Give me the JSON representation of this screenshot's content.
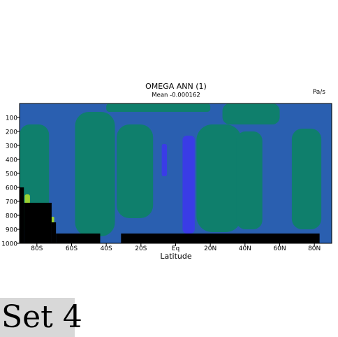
{
  "chart_data": {
    "type": "heatmap",
    "title": "OMEGA ANN (1)",
    "subtitle": "Mean -0.000162",
    "units": "Pa/s",
    "xlabel": "Latitude",
    "ylabel": "",
    "x_ticks": [
      "80S",
      "60S",
      "40S",
      "20S",
      "Eq",
      "20N",
      "40N",
      "60N",
      "80N"
    ],
    "x_tick_values": [
      -80,
      -60,
      -40,
      -20,
      0,
      20,
      40,
      60,
      80
    ],
    "y_ticks": [
      "100",
      "200",
      "300",
      "400",
      "500",
      "600",
      "700",
      "800",
      "900",
      "1000"
    ],
    "y_tick_values": [
      100,
      200,
      300,
      400,
      500,
      600,
      700,
      800,
      900,
      1000
    ],
    "xlim": [
      -90,
      90
    ],
    "ylim": [
      1000,
      0
    ],
    "colors": {
      "background_field": "#2a5fb0",
      "positive_region": "#0f7f6c",
      "negative_region": "#3a3ce6",
      "strong_positive": "#9ad234",
      "missing": "#000000"
    },
    "regions": [
      {
        "kind": "positive",
        "lat": [
          -90,
          -73
        ],
        "p": [
          150,
          920
        ]
      },
      {
        "kind": "positive",
        "lat": [
          -58,
          -35
        ],
        "p": [
          60,
          950
        ]
      },
      {
        "kind": "positive",
        "lat": [
          -40,
          20
        ],
        "p": [
          0,
          60
        ]
      },
      {
        "kind": "positive",
        "lat": [
          -34,
          -13
        ],
        "p": [
          150,
          820
        ]
      },
      {
        "kind": "positive",
        "lat": [
          12,
          38
        ],
        "p": [
          150,
          920
        ]
      },
      {
        "kind": "positive",
        "lat": [
          27,
          60
        ],
        "p": [
          0,
          150
        ]
      },
      {
        "kind": "positive",
        "lat": [
          35,
          50
        ],
        "p": [
          200,
          900
        ]
      },
      {
        "kind": "positive",
        "lat": [
          67,
          84
        ],
        "p": [
          180,
          900
        ]
      },
      {
        "kind": "negative",
        "lat": [
          4,
          11
        ],
        "p": [
          230,
          930
        ]
      },
      {
        "kind": "negative",
        "lat": [
          -8,
          -5
        ],
        "p": [
          290,
          520
        ]
      },
      {
        "kind": "strong_positive",
        "lat": [
          -87,
          -84
        ],
        "p": [
          650,
          720
        ]
      },
      {
        "kind": "strong_positive",
        "lat": [
          -72,
          -70
        ],
        "p": [
          810,
          860
        ]
      }
    ],
    "missing_regions": [
      {
        "lat": [
          -90,
          -87.5
        ],
        "p": [
          600,
          1000
        ]
      },
      {
        "lat": [
          -87.5,
          -71.5
        ],
        "p": [
          710,
          1000
        ]
      },
      {
        "lat": [
          -71.5,
          -69
        ],
        "p": [
          850,
          1000
        ]
      },
      {
        "lat": [
          -69,
          -43.5
        ],
        "p": [
          930,
          1000
        ]
      },
      {
        "lat": [
          -31.5,
          83
        ],
        "p": [
          930,
          1000
        ]
      }
    ]
  },
  "badge": {
    "label": "Set 4"
  }
}
